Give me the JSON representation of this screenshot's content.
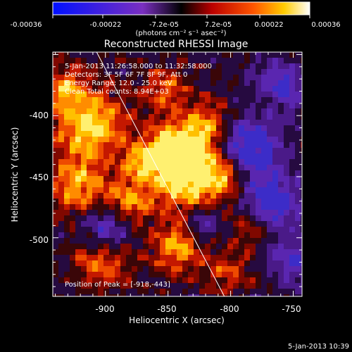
{
  "colorbar": {
    "ticks": [
      "-0.00036",
      "-0.00022",
      "-7.2e-05",
      "7.2e-05",
      "0.00022",
      "0.00036"
    ],
    "tick_values": [
      -0.00036,
      -0.00022,
      -7.2e-05,
      7.2e-05,
      0.00022,
      0.00036
    ],
    "range": [
      -0.00036,
      0.00036
    ],
    "units_label": "(photons cm⁻² s⁻¹ asec⁻²)"
  },
  "annotations": {
    "time_range": "5-Jan-2013 11:26:58.000 to 11:32:58.000",
    "detectors": "Detectors: 3F 5F 6F 7F 8F 9F, Att 0",
    "energy": "Energy Range: 12.0 - 25.0 keV",
    "clean": "Clean    Total counts: 8.94E+03",
    "peak": "Position of Peak = [-918,-443]"
  },
  "footer": {
    "timestamp": "5-Jan-2013 10:39"
  },
  "chart_data": {
    "type": "heatmap",
    "title": "Reconstructed RHESSI Image",
    "xlabel": "Heliocentric X (arcsec)",
    "ylabel": "Heliocentric Y (arcsec)",
    "xlim": [
      -942,
      -743
    ],
    "ylim": [
      -548,
      -348
    ],
    "x_ticks": [
      -900,
      -850,
      -800,
      -750
    ],
    "y_ticks": [
      -500,
      -450,
      -400
    ],
    "x_tick_labels": [
      "-900",
      "-850",
      "-800",
      "-750"
    ],
    "y_tick_labels": [
      "-500",
      "-450",
      "-400"
    ],
    "grid": false,
    "colormap": "RHESSI red-temperature (blue-purple negative, black-red-orange-yellow-white positive)",
    "limb_line": {
      "from": [
        -907,
        -348
      ],
      "to": [
        -805,
        -548
      ]
    },
    "peak": {
      "x": -918,
      "y": -443
    }
  },
  "colors": {
    "background": "#000000",
    "text": "#ffffff",
    "neg_low": "#0000ff",
    "neg_mid": "#7a2fc0",
    "zero": "#000000",
    "pos_mid": "#cc1500",
    "pos_high": "#ff8a00",
    "pos_max": "#ffffff"
  }
}
